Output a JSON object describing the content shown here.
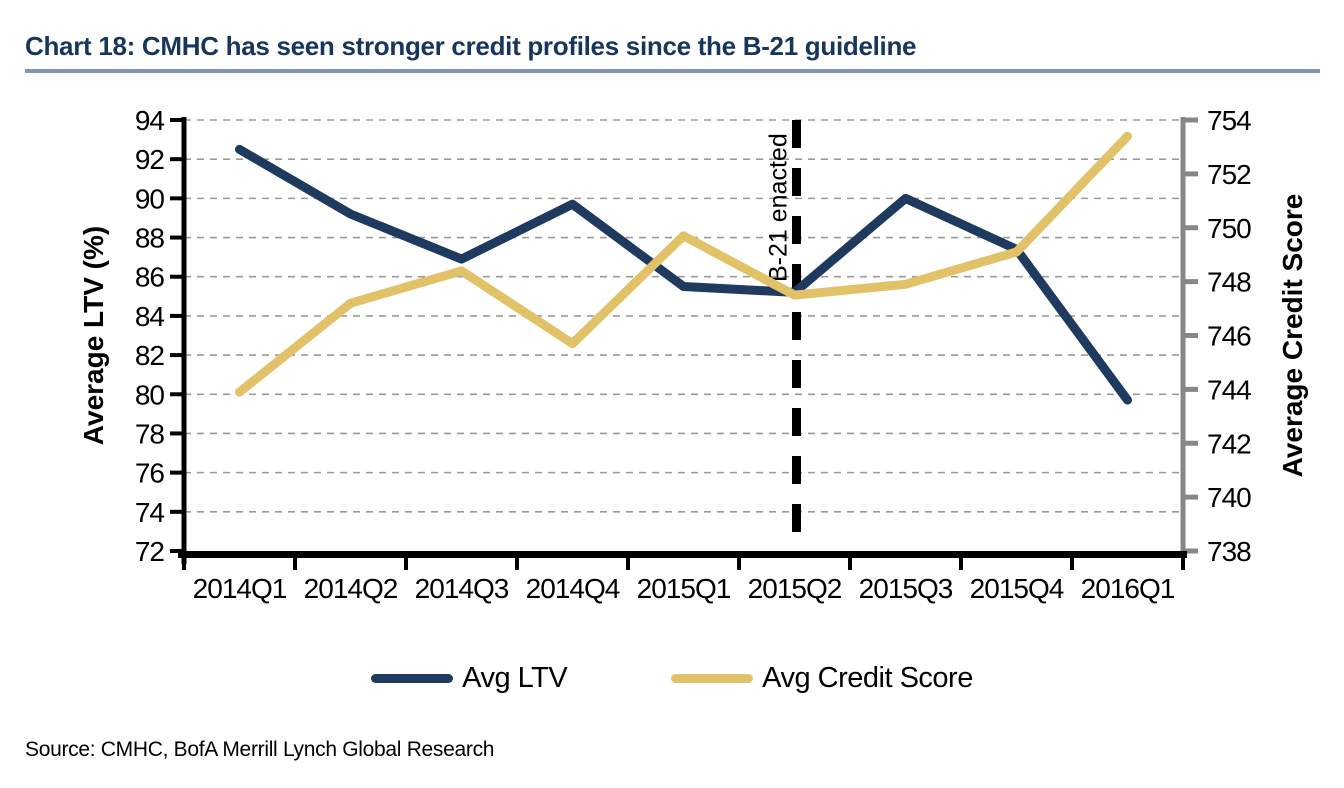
{
  "header": {
    "title": "Chart 18: CMHC has seen stronger credit profiles since the B-21 guideline"
  },
  "chart_data": {
    "type": "line",
    "categories": [
      "2014Q1",
      "2014Q2",
      "2014Q3",
      "2014Q4",
      "2015Q1",
      "2015Q2",
      "2015Q3",
      "2015Q4",
      "2016Q1"
    ],
    "series": [
      {
        "name": "Avg LTV",
        "axis": "left",
        "color": "#1f3a5f",
        "values": [
          92.5,
          89.2,
          86.9,
          89.7,
          85.5,
          85.2,
          90.0,
          87.4,
          79.7
        ]
      },
      {
        "name": "Avg Credit Score",
        "axis": "right",
        "color": "#e2c268",
        "values": [
          743.9,
          747.2,
          748.4,
          745.7,
          749.7,
          747.5,
          747.9,
          749.1,
          753.4
        ]
      }
    ],
    "left_axis": {
      "label": "Average LTV (%)",
      "min": 72,
      "max": 94,
      "step": 2,
      "ticks": [
        94,
        92,
        90,
        88,
        86,
        84,
        82,
        80,
        78,
        76,
        74,
        72
      ]
    },
    "right_axis": {
      "label": "Average Credit Score",
      "min": 738,
      "max": 754,
      "step": 2,
      "ticks": [
        754,
        752,
        750,
        748,
        746,
        744,
        742,
        740,
        738
      ]
    },
    "annotation": {
      "label": "B-21 enacted",
      "at_category": "2015Q2",
      "style": "vertical-dashed-black-line"
    },
    "grid": "horizontal-dashed",
    "legend_position": "bottom"
  },
  "legend": {
    "items": [
      {
        "label": "Avg LTV",
        "color": "#1f3a5f"
      },
      {
        "label": "Avg Credit Score",
        "color": "#e2c268"
      }
    ]
  },
  "footer": {
    "source": "Source: CMHC, BofA Merrill Lynch Global Research"
  },
  "colors": {
    "title_navy": "#17365d",
    "title_rule": "#7e96ae",
    "ltv_line": "#1f3a5f",
    "credit_line": "#e2c268",
    "gridline_gray": "#9b9b9b",
    "right_axis_gray": "#878787",
    "axis_black": "#000000"
  }
}
